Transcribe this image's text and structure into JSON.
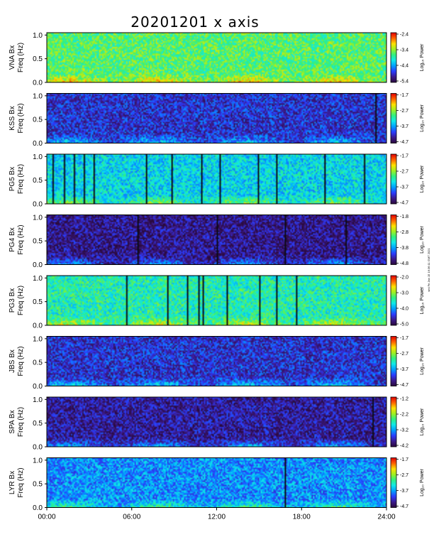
{
  "chart_data": {
    "type": "heatmap",
    "title": "20201201 x axis",
    "xlabel": "",
    "xlim": [
      0,
      24
    ],
    "x_tick_labels": [
      "00:00",
      "06:00",
      "12:00",
      "18:00",
      "24:00"
    ],
    "x_tick_values": [
      0,
      6,
      12,
      18,
      24
    ],
    "ylim": [
      0,
      1.05
    ],
    "y_tick_labels": [
      "0.0",
      "0.5",
      "1.0"
    ],
    "y_tick_values": [
      0,
      0.5,
      1.0
    ],
    "colorbar_label": "Log₁₀ Power",
    "colormap": [
      "#2a0a3c",
      "#3c1a8c",
      "#2a3cff",
      "#00a0ff",
      "#10e8e8",
      "#30f080",
      "#a0f020",
      "#ffe000",
      "#ff6000",
      "#e00000"
    ],
    "panels": [
      {
        "station": "VNA Bx",
        "ylabel": "Freq (Hz)",
        "cbar_ticks": [
          "-2.4",
          "-3.4",
          "-4.4",
          "-5.4"
        ],
        "base": 0.58,
        "gaps": []
      },
      {
        "station": "KSS Bx",
        "ylabel": "Freq (Hz)",
        "cbar_ticks": [
          "-1.7",
          "-2.7",
          "-3.7",
          "-4.7"
        ],
        "base": 0.18,
        "gaps": [
          23.2
        ]
      },
      {
        "station": "PG5 Bx",
        "ylabel": "Freq (Hz)",
        "cbar_ticks": [
          "-1.7",
          "-2.7",
          "-3.7",
          "-4.7"
        ],
        "base": 0.42,
        "gaps": [
          0.4,
          1.2,
          1.9,
          2.6,
          3.3,
          7.0,
          8.8,
          10.9,
          12.2,
          14.9,
          16.2,
          19.6,
          22.4
        ]
      },
      {
        "station": "PG4 Bx",
        "ylabel": "Freq (Hz)",
        "cbar_ticks": [
          "-1.8",
          "-2.8",
          "-3.8",
          "-4.8"
        ],
        "base": 0.1,
        "gaps": [
          6.4,
          12.0,
          16.8,
          21.1
        ]
      },
      {
        "station": "PG3 Bx",
        "ylabel": "Freq (Hz)",
        "cbar_ticks": [
          "-2.0",
          "-3.0",
          "-4.0",
          "-5.0"
        ],
        "base": 0.5,
        "gaps": [
          5.6,
          8.5,
          9.9,
          10.7,
          11.0,
          12.7,
          15.0,
          16.2,
          17.6
        ]
      },
      {
        "station": "JBS Bx",
        "ylabel": "Freq (Hz)",
        "cbar_ticks": [
          "-1.7",
          "-2.7",
          "-3.7",
          "-4.7"
        ],
        "base": 0.18,
        "gaps": []
      },
      {
        "station": "SPA Bx",
        "ylabel": "Freq (Hz)",
        "cbar_ticks": [
          "-1.2",
          "-2.2",
          "-3.2",
          "-4.2"
        ],
        "base": 0.12,
        "gaps": [
          23.0
        ]
      },
      {
        "station": "LYR Bx",
        "ylabel": "Freq (Hz)",
        "cbar_ticks": [
          "-1.7",
          "-2.7",
          "-3.7",
          "-4.7"
        ],
        "base": 0.32,
        "gaps": [
          16.8
        ]
      }
    ],
    "side_stamp": "sml Fri Jan 15 16:36:11 GMT 2021"
  }
}
